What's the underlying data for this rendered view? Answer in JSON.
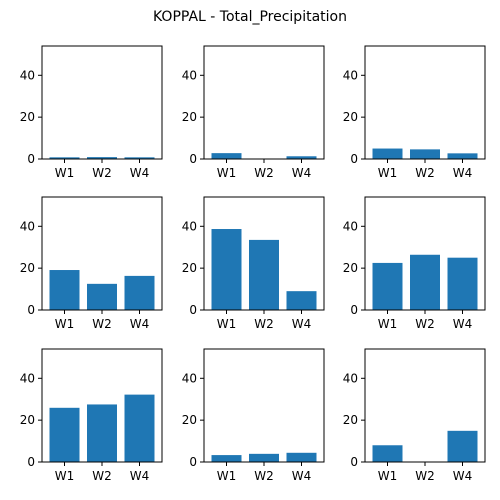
{
  "chart_data": {
    "type": "bar",
    "title": "KOPPAL - Total_Precipitation",
    "layout": "3x3 grid",
    "bar_color": "#1f77b4",
    "categories": [
      "W1",
      "W2",
      "W4"
    ],
    "ylim": [
      0,
      54
    ],
    "yticks": [
      0,
      20,
      40
    ],
    "grid": false,
    "subplots": [
      {
        "values": [
          0.8,
          0.9,
          0.8
        ]
      },
      {
        "values": [
          2.8,
          0.0,
          1.3
        ]
      },
      {
        "values": [
          5.0,
          4.6,
          2.7
        ]
      },
      {
        "values": [
          19.1,
          12.5,
          16.3
        ]
      },
      {
        "values": [
          38.7,
          33.5,
          9.0
        ]
      },
      {
        "values": [
          22.5,
          26.4,
          25.0
        ]
      },
      {
        "values": [
          25.9,
          27.5,
          32.2
        ]
      },
      {
        "values": [
          3.3,
          3.9,
          4.4
        ]
      },
      {
        "values": [
          8.0,
          0.0,
          14.9
        ]
      }
    ]
  }
}
